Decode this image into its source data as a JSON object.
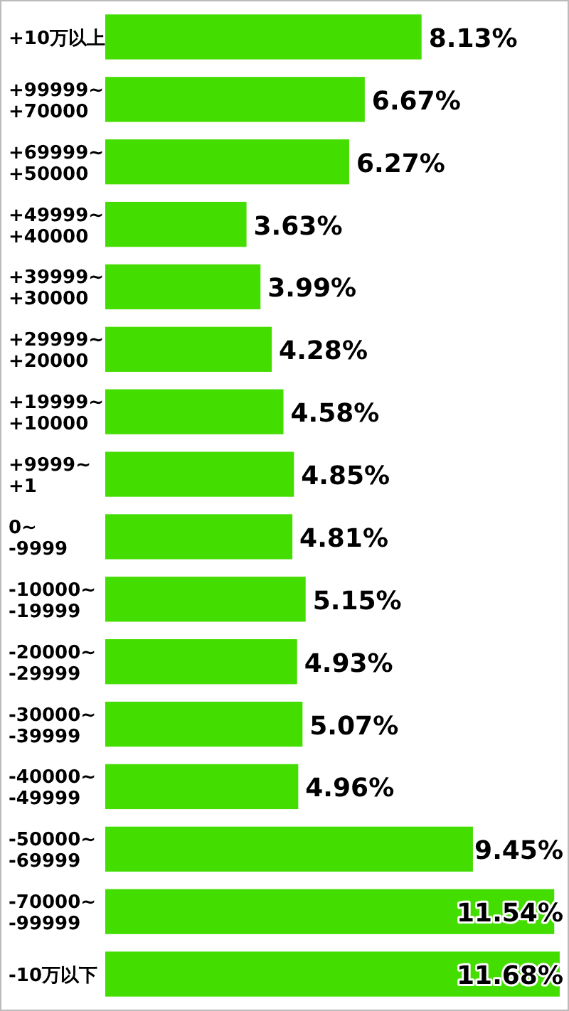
{
  "chart_data": {
    "type": "bar",
    "orientation": "horizontal",
    "categories": [
      "+10万以上",
      "+99999~\n+70000",
      "+69999~\n+50000",
      "+49999~\n+40000",
      "+39999~\n+30000",
      "+29999~\n+20000",
      "+19999~\n+10000",
      "+9999~\n+1",
      "0~\n-9999",
      "-10000~\n-19999",
      "-20000~\n-29999",
      "-30000~\n-39999",
      "-40000~\n-49999",
      "-50000~\n-69999",
      "-70000~\n-99999",
      "-10万以下"
    ],
    "values": [
      8.13,
      6.67,
      6.27,
      3.63,
      3.99,
      4.28,
      4.58,
      4.85,
      4.81,
      5.15,
      4.93,
      5.07,
      4.96,
      9.45,
      11.54,
      11.68
    ],
    "value_labels": [
      "8.13%",
      "6.67%",
      "6.27%",
      "3.63%",
      "3.99%",
      "4.28%",
      "4.58%",
      "4.85%",
      "4.81%",
      "5.15%",
      "4.93%",
      "5.07%",
      "4.96%",
      "9.45%",
      "11.54%",
      "11.68%"
    ],
    "color": "#44dd00",
    "xlim": [
      0,
      11.7
    ]
  }
}
